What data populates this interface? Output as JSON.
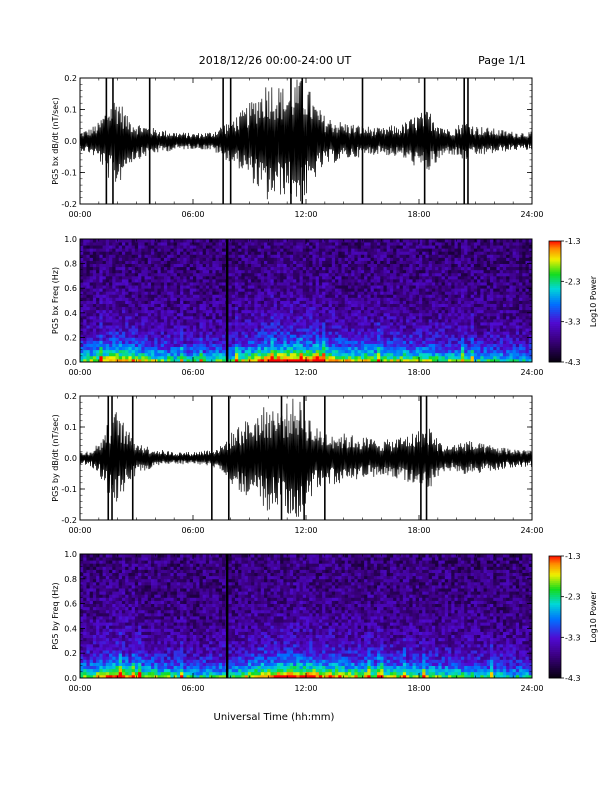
{
  "header": {
    "title": "2018/12/26  00:00-24:00 UT",
    "page": "Page 1/1"
  },
  "xaxis": {
    "title": "Universal Time (hh:mm)",
    "ticks": [
      "00:00",
      "06:00",
      "12:00",
      "18:00",
      "24:00"
    ],
    "range_hours": [
      0,
      24
    ]
  },
  "chart_data": [
    {
      "type": "line",
      "title": "",
      "ylabel": "PG5 bx dB/dt (nT/sec)",
      "ylim": [
        -0.2,
        0.2
      ],
      "yticks": [
        "-0.2",
        "-0.1",
        "0.0",
        "0.1",
        "0.2"
      ],
      "xlabel": "",
      "envelope": {
        "x_hours": [
          0,
          0.5,
          1,
          1.5,
          2,
          2.5,
          3,
          3.5,
          4,
          5,
          6,
          7,
          7.5,
          8,
          8.5,
          9,
          9.5,
          10,
          10.5,
          11,
          11.5,
          12,
          12.5,
          13,
          14,
          15,
          16,
          16.5,
          17,
          17.5,
          18,
          18.5,
          19,
          19.5,
          20,
          20.5,
          21,
          22,
          23,
          24
        ],
        "amplitude": [
          0.03,
          0.04,
          0.06,
          0.12,
          0.15,
          0.08,
          0.06,
          0.05,
          0.04,
          0.03,
          0.025,
          0.03,
          0.05,
          0.07,
          0.09,
          0.12,
          0.16,
          0.2,
          0.18,
          0.17,
          0.2,
          0.19,
          0.12,
          0.08,
          0.06,
          0.05,
          0.04,
          0.05,
          0.05,
          0.07,
          0.09,
          0.1,
          0.07,
          0.04,
          0.05,
          0.07,
          0.05,
          0.04,
          0.03,
          0.03
        ]
      },
      "spikes_hours": [
        1.4,
        1.75,
        3.7,
        7.6,
        8.0,
        11.2,
        11.8,
        15.0,
        18.3,
        20.4,
        20.6
      ]
    },
    {
      "type": "heatmap",
      "title": "",
      "ylabel": "PG5 bx Freq (Hz)",
      "ylim": [
        0.0,
        1.0
      ],
      "yticks": [
        "0.0",
        "0.2",
        "0.4",
        "0.6",
        "0.8",
        "1.0"
      ],
      "colorbar": {
        "label": "Log10 Power",
        "range": [
          -4.3,
          -1.3
        ],
        "ticks": [
          "-1.3",
          "-2.3",
          "-3.3",
          "-4.3"
        ]
      },
      "activity_hours": [
        0,
        2,
        4,
        6,
        8,
        10,
        12,
        14,
        16,
        18,
        20,
        22,
        24
      ],
      "activity_level": [
        0.5,
        0.75,
        0.55,
        0.45,
        0.5,
        0.8,
        0.85,
        0.65,
        0.6,
        0.6,
        0.5,
        0.45,
        0.4
      ]
    },
    {
      "type": "line",
      "title": "",
      "ylabel": "PG5 by dB/dt (nT/sec)",
      "ylim": [
        -0.2,
        0.2
      ],
      "yticks": [
        "-0.2",
        "-0.1",
        "0.0",
        "0.1",
        "0.2"
      ],
      "xlabel": "",
      "envelope": {
        "x_hours": [
          0,
          0.5,
          1,
          1.5,
          2,
          2.5,
          3,
          3.5,
          4,
          5,
          6,
          7,
          7.5,
          8,
          8.5,
          9,
          9.5,
          10,
          10.5,
          11,
          11.5,
          12,
          12.5,
          13,
          14,
          15,
          16,
          16.5,
          17,
          17.5,
          18,
          18.5,
          19,
          19.5,
          20,
          20.5,
          21,
          22,
          23,
          24
        ],
        "amplitude": [
          0.02,
          0.025,
          0.05,
          0.12,
          0.16,
          0.09,
          0.06,
          0.04,
          0.03,
          0.02,
          0.02,
          0.03,
          0.04,
          0.08,
          0.11,
          0.13,
          0.15,
          0.18,
          0.16,
          0.18,
          0.2,
          0.16,
          0.1,
          0.09,
          0.08,
          0.07,
          0.06,
          0.06,
          0.07,
          0.08,
          0.09,
          0.11,
          0.06,
          0.04,
          0.05,
          0.06,
          0.05,
          0.04,
          0.03,
          0.03
        ]
      },
      "spikes_hours": [
        1.5,
        1.7,
        2.8,
        7.0,
        7.9,
        10.7,
        11.9,
        13.0,
        18.1,
        18.4
      ]
    },
    {
      "type": "heatmap",
      "title": "",
      "ylabel": "PG5 by Freq (Hz)",
      "ylim": [
        0.0,
        1.0
      ],
      "yticks": [
        "0.0",
        "0.2",
        "0.4",
        "0.6",
        "0.8",
        "1.0"
      ],
      "colorbar": {
        "label": "Log10 Power",
        "range": [
          -4.3,
          -1.3
        ],
        "ticks": [
          "-1.3",
          "-2.3",
          "-3.3",
          "-4.3"
        ]
      },
      "activity_hours": [
        0,
        2,
        4,
        6,
        8,
        10,
        12,
        14,
        16,
        18,
        20,
        22,
        24
      ],
      "activity_level": [
        0.5,
        0.75,
        0.55,
        0.45,
        0.5,
        0.75,
        0.8,
        0.65,
        0.6,
        0.55,
        0.5,
        0.45,
        0.4
      ]
    }
  ]
}
